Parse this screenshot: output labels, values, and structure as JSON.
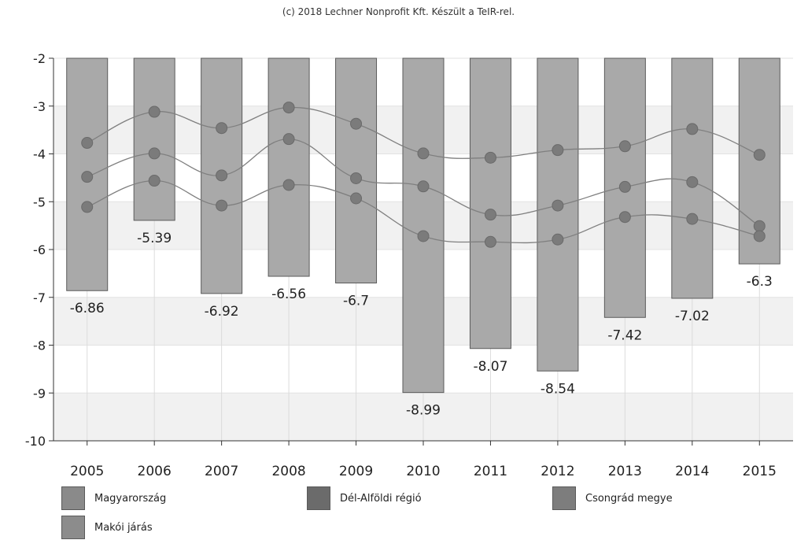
{
  "credit": "(c) 2018 Lechner Nonprofit Kft. Készült a TeIR-rel.",
  "chart_data": {
    "type": "bar",
    "categories": [
      "2005",
      "2006",
      "2007",
      "2008",
      "2009",
      "2010",
      "2011",
      "2012",
      "2013",
      "2014",
      "2015"
    ],
    "ylim": [
      -10,
      -2
    ],
    "yticks": [
      -2,
      -3,
      -4,
      -5,
      -6,
      -7,
      -8,
      -9,
      -10
    ],
    "grid": true,
    "legend_position": "bottom",
    "series": [
      {
        "name": "Magyarország",
        "type": "line",
        "values": [
          -3.77,
          -3.12,
          -3.46,
          -3.03,
          -3.37,
          -3.99,
          -4.08,
          -3.92,
          -3.84,
          -3.48,
          -4.02
        ],
        "color": "#8a8a8a"
      },
      {
        "name": "Dél-Alföldi régió",
        "type": "line",
        "values": [
          -4.48,
          -3.99,
          -4.45,
          -3.69,
          -4.51,
          -4.68,
          -5.27,
          -5.08,
          -4.69,
          -4.59,
          -5.51
        ],
        "color": "#6e6e6e"
      },
      {
        "name": "Csongrád megye",
        "type": "line",
        "values": [
          -5.11,
          -4.56,
          -5.08,
          -4.65,
          -4.93,
          -5.72,
          -5.84,
          -5.79,
          -5.32,
          -5.36,
          -5.72
        ],
        "color": "#7c7c7c"
      },
      {
        "name": "Makói járás",
        "type": "bar",
        "values": [
          -6.86,
          -5.39,
          -6.92,
          -6.56,
          -6.7,
          -8.99,
          -8.07,
          -8.54,
          -7.42,
          -7.02,
          -6.3
        ],
        "color": "#a9a9a9"
      }
    ]
  }
}
